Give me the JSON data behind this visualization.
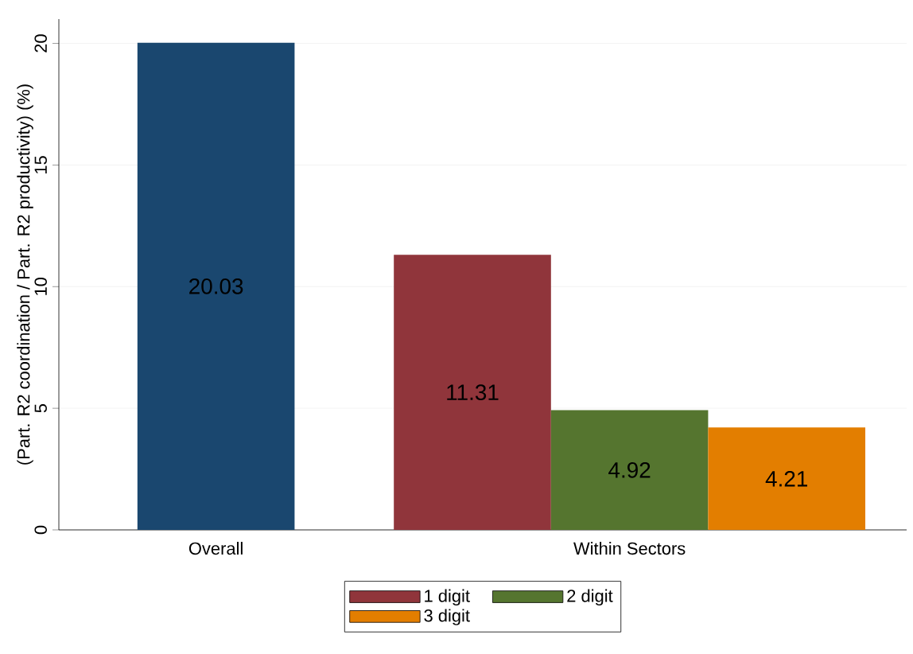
{
  "chart_data": {
    "type": "bar",
    "ylabel": "(Part. R2 coordination / Part. R2 productivity) (%)",
    "categories": [
      "Overall",
      "Within Sectors"
    ],
    "series": [
      {
        "color": "#1a476f",
        "values": [
          20.03,
          null
        ]
      },
      {
        "name": "1 digit",
        "color": "#90353b",
        "values": [
          null,
          11.31
        ]
      },
      {
        "name": "2 digit",
        "color": "#55752f",
        "values": [
          null,
          4.92
        ]
      },
      {
        "name": "3 digit",
        "color": "#e37e00",
        "values": [
          null,
          4.21
        ]
      }
    ],
    "ylim": [
      0,
      21
    ],
    "yticks": [
      0,
      5,
      10,
      15,
      20
    ],
    "grid": "y",
    "legend": "bottom",
    "data_labels": true
  }
}
